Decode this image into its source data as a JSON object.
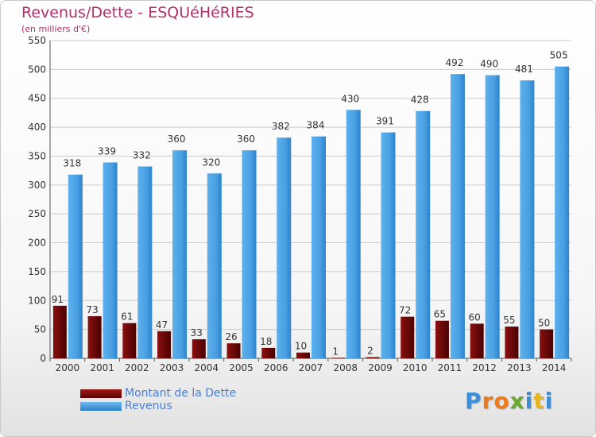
{
  "chart_data": {
    "type": "bar",
    "title": "Revenus/Dette - ESQUéHéRIES",
    "subtitle": "(en milliers d'€)",
    "categories": [
      "2000",
      "2001",
      "2002",
      "2003",
      "2004",
      "2005",
      "2006",
      "2007",
      "2008",
      "2009",
      "2010",
      "2011",
      "2012",
      "2013",
      "2014"
    ],
    "series": [
      {
        "name": "Montant de la Dette",
        "color": "#7a0c0c",
        "values": [
          91,
          73,
          61,
          47,
          33,
          26,
          18,
          10,
          1,
          2,
          72,
          65,
          60,
          55,
          50
        ]
      },
      {
        "name": "Revenus",
        "color": "#4a9fe0",
        "values": [
          318,
          339,
          332,
          360,
          320,
          360,
          382,
          384,
          430,
          391,
          428,
          492,
          490,
          481,
          505
        ]
      }
    ],
    "yticks": [
      0,
      50,
      100,
      150,
      200,
      250,
      300,
      350,
      400,
      450,
      500,
      550
    ],
    "ylim": [
      0,
      550
    ],
    "grid": true,
    "legend": "bottom-left"
  },
  "logo": {
    "text": "Proxiti",
    "letters": [
      "P",
      "r",
      "o",
      "x",
      "i",
      "t",
      "i"
    ],
    "colors": [
      "#3a8fd8",
      "#f07a1a",
      "#f07a1a",
      "#6aaa2a",
      "#3a8fd8",
      "#e8b41a",
      "#3a8fd8"
    ]
  }
}
